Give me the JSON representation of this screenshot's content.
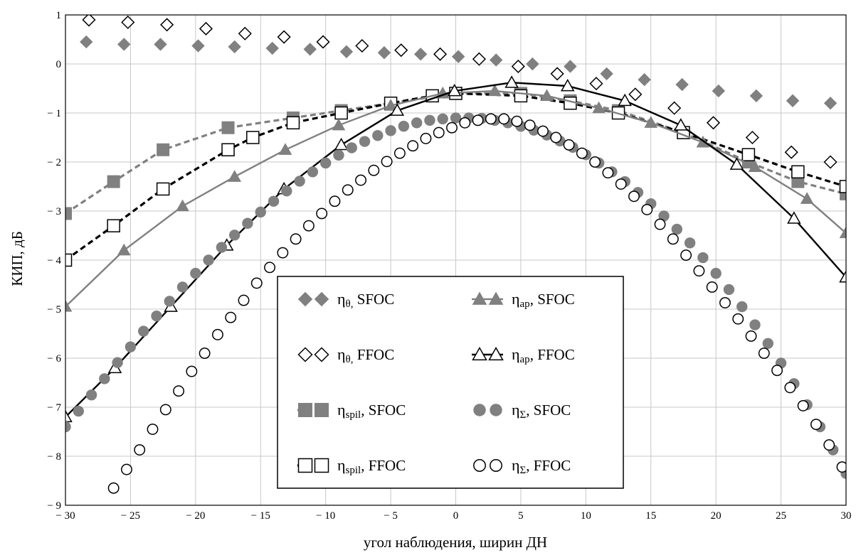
{
  "chart_data": {
    "type": "line",
    "xlabel": "угол наблюдения, ширин ДН",
    "ylabel": "КИП, дБ",
    "xlim": [
      -30,
      30
    ],
    "ylim": [
      -9,
      1
    ],
    "xticks": [
      -30,
      -25,
      -20,
      -15,
      -10,
      -5,
      0,
      5,
      10,
      15,
      20,
      25,
      30
    ],
    "yticks": [
      1,
      0,
      -1,
      -2,
      -3,
      -4,
      -5,
      -6,
      -7,
      -8,
      -9
    ],
    "xtick_labels": [
      "− 30",
      "− 25",
      "− 20",
      "− 15",
      "− 10",
      "− 5",
      "0",
      "5",
      "10",
      "15",
      "20",
      "25",
      "30"
    ],
    "ytick_labels": [
      "1",
      "0",
      "− 1",
      "− 2",
      "− 3",
      "− 4",
      "− 5",
      "− 6",
      "− 7",
      "− 8",
      "− 9"
    ],
    "grid": true,
    "legend_position": "bottom-center",
    "series": [
      {
        "name": "η_θ, SFOC",
        "label_base": "η",
        "label_sub": "θ,",
        "label_suffix": " SFOC",
        "color": "#808080",
        "line": "none",
        "marker": "diamond-filled",
        "x": [
          -28.4,
          -25.5,
          -22.7,
          -19.8,
          -17,
          -14.1,
          -11.2,
          -8.4,
          -5.5,
          -2.7,
          0.2,
          3.1,
          5.9,
          8.8,
          11.6,
          14.5,
          17.4,
          20.2,
          23.1,
          25.9,
          28.8
        ],
        "y": [
          0.45,
          0.4,
          0.4,
          0.37,
          0.35,
          0.32,
          0.3,
          0.25,
          0.23,
          0.2,
          0.15,
          0.08,
          0,
          -0.05,
          -0.2,
          -0.32,
          -0.42,
          -0.55,
          -0.65,
          -0.75,
          -0.8
        ]
      },
      {
        "name": "η_θ, FFOC",
        "label_base": "η",
        "label_sub": "θ,",
        "label_suffix": " FFOC",
        "color": "#000000",
        "line": "none",
        "marker": "diamond-open",
        "x": [
          -28.2,
          -25.2,
          -22.2,
          -19.2,
          -16.2,
          -13.2,
          -10.2,
          -7.2,
          -4.2,
          -1.2,
          1.8,
          4.8,
          7.8,
          10.8,
          13.8,
          16.8,
          19.8,
          22.8,
          25.8,
          28.8
        ],
        "y": [
          0.9,
          0.85,
          0.8,
          0.72,
          0.62,
          0.55,
          0.45,
          0.37,
          0.28,
          0.2,
          0.1,
          -0.05,
          -0.2,
          -0.4,
          -0.62,
          -0.9,
          -1.2,
          -1.5,
          -1.8,
          -2.0
        ]
      },
      {
        "name": "η_spil, SFOC",
        "label_base": "η",
        "label_sub": "spil",
        "label_suffix": ", SFOC",
        "color": "#808080",
        "line": "dashed",
        "marker": "square-filled",
        "x": [
          -30,
          -26.3,
          -22.5,
          -17.5,
          -12.5,
          -8.8,
          -5,
          0,
          5,
          8.8,
          12.5,
          17.5,
          22.5,
          26.3,
          30
        ],
        "y": [
          -3.05,
          -2.4,
          -1.75,
          -1.3,
          -1.1,
          -0.95,
          -0.8,
          -0.6,
          -0.6,
          -0.75,
          -0.95,
          -1.4,
          -2.0,
          -2.4,
          -2.65
        ]
      },
      {
        "name": "η_spil, FFOC",
        "label_base": "η",
        "label_sub": "spil",
        "label_suffix": ", FFOC",
        "color": "#000000",
        "line": "dashed",
        "marker": "square-open",
        "x": [
          -30,
          -26.3,
          -22.5,
          -17.5,
          -15.6,
          -12.5,
          -8.8,
          -5,
          -1.8,
          0,
          5,
          8.8,
          12.5,
          17.5,
          22.5,
          26.3,
          30
        ],
        "y": [
          -4.0,
          -3.3,
          -2.55,
          -1.75,
          -1.5,
          -1.2,
          -1.0,
          -0.8,
          -0.65,
          -0.6,
          -0.65,
          -0.8,
          -1.0,
          -1.4,
          -1.85,
          -2.2,
          -2.5
        ]
      },
      {
        "name": "η_ap, SFOC",
        "label_base": "η",
        "label_sub": "ap",
        "label_suffix": ", SFOC",
        "color": "#808080",
        "line": "solid",
        "marker": "triangle-filled",
        "x": [
          -30,
          -25.5,
          -21,
          -17,
          -13.1,
          -9,
          -5,
          -1,
          3,
          7,
          11,
          15,
          19,
          23,
          27,
          30
        ],
        "y": [
          -4.95,
          -3.8,
          -2.9,
          -2.3,
          -1.75,
          -1.25,
          -0.85,
          -0.6,
          -0.55,
          -0.65,
          -0.9,
          -1.2,
          -1.6,
          -2.1,
          -2.75,
          -3.45
        ]
      },
      {
        "name": "η_ap, FFOC",
        "label_base": "η",
        "label_sub": "ap",
        "label_suffix": ", FFOC",
        "color": "#000000",
        "line": "solid",
        "marker": "triangle-open",
        "x": [
          -30,
          -26.2,
          -21.9,
          -17.6,
          -13.2,
          -8.8,
          -4.5,
          -0.1,
          4.3,
          8.6,
          13,
          17.3,
          21.6,
          26,
          30
        ],
        "y": [
          -7.2,
          -6.2,
          -4.95,
          -3.7,
          -2.55,
          -1.65,
          -0.95,
          -0.55,
          -0.38,
          -0.45,
          -0.75,
          -1.25,
          -2.05,
          -3.15,
          -4.35
        ]
      },
      {
        "name": "η_Σ, SFOC",
        "label_base": "η",
        "label_sub": "Σ",
        "label_suffix": ", SFOC",
        "color": "#808080",
        "line": "none",
        "marker": "circle-filled",
        "x": [
          -30,
          -29,
          -28,
          -27,
          -26,
          -25,
          -24,
          -23,
          -22,
          -21,
          -20,
          -19,
          -18,
          -17,
          -16,
          -15,
          -14,
          -13,
          -12,
          -11,
          -10,
          -9,
          -8,
          -7,
          -6,
          -5,
          -4,
          -3,
          -2,
          -1,
          0,
          1,
          2,
          3,
          4,
          5,
          6,
          7,
          8,
          9,
          10,
          11,
          12,
          13,
          14,
          15,
          16,
          17,
          18,
          19,
          20,
          21,
          22,
          23,
          24,
          25,
          26,
          27,
          28,
          29,
          30
        ],
        "y": [
          -7.4,
          -7.08,
          -6.75,
          -6.42,
          -6.09,
          -5.77,
          -5.45,
          -5.14,
          -4.84,
          -4.55,
          -4.27,
          -4.0,
          -3.74,
          -3.49,
          -3.25,
          -3.02,
          -2.8,
          -2.59,
          -2.39,
          -2.2,
          -2.02,
          -1.86,
          -1.71,
          -1.58,
          -1.46,
          -1.36,
          -1.27,
          -1.2,
          -1.15,
          -1.12,
          -1.1,
          -1.1,
          -1.11,
          -1.15,
          -1.2,
          -1.27,
          -1.35,
          -1.45,
          -1.57,
          -1.7,
          -1.85,
          -2.02,
          -2.2,
          -2.4,
          -2.62,
          -2.85,
          -3.1,
          -3.37,
          -3.65,
          -3.95,
          -4.27,
          -4.6,
          -4.95,
          -5.32,
          -5.7,
          -6.1,
          -6.52,
          -6.95,
          -7.4,
          -7.87,
          -8.35
        ]
      },
      {
        "name": "η_Σ, FFOC",
        "label_base": "η",
        "label_sub": "Σ",
        "label_suffix": ", FFOC",
        "color": "#000000",
        "line": "none",
        "marker": "circle-open",
        "x": [
          -26.3,
          -25.3,
          -24.3,
          -23.3,
          -22.3,
          -21.3,
          -20.3,
          -19.3,
          -18.3,
          -17.3,
          -16.3,
          -15.3,
          -14.3,
          -13.3,
          -12.3,
          -11.3,
          -10.3,
          -9.3,
          -8.3,
          -7.3,
          -6.3,
          -5.3,
          -4.3,
          -3.3,
          -2.3,
          -1.3,
          -0.3,
          0.7,
          1.7,
          2.7,
          3.7,
          4.7,
          5.7,
          6.7,
          7.7,
          8.7,
          9.7,
          10.7,
          11.7,
          12.7,
          13.7,
          14.7,
          15.7,
          16.7,
          17.7,
          18.7,
          19.7,
          20.7,
          21.7,
          22.7,
          23.7,
          24.7,
          25.7,
          26.7,
          27.7,
          28.7,
          29.7
        ],
        "y": [
          -8.65,
          -8.27,
          -7.87,
          -7.45,
          -7.05,
          -6.67,
          -6.27,
          -5.9,
          -5.52,
          -5.17,
          -4.82,
          -4.47,
          -4.15,
          -3.85,
          -3.57,
          -3.3,
          -3.05,
          -2.8,
          -2.57,
          -2.37,
          -2.17,
          -1.99,
          -1.82,
          -1.67,
          -1.52,
          -1.4,
          -1.3,
          -1.2,
          -1.15,
          -1.12,
          -1.12,
          -1.17,
          -1.25,
          -1.37,
          -1.5,
          -1.65,
          -1.82,
          -2.0,
          -2.22,
          -2.45,
          -2.7,
          -2.97,
          -3.27,
          -3.57,
          -3.9,
          -4.22,
          -4.55,
          -4.87,
          -5.2,
          -5.55,
          -5.9,
          -6.25,
          -6.6,
          -6.97,
          -7.35,
          -7.77,
          -8.22
        ]
      }
    ]
  }
}
